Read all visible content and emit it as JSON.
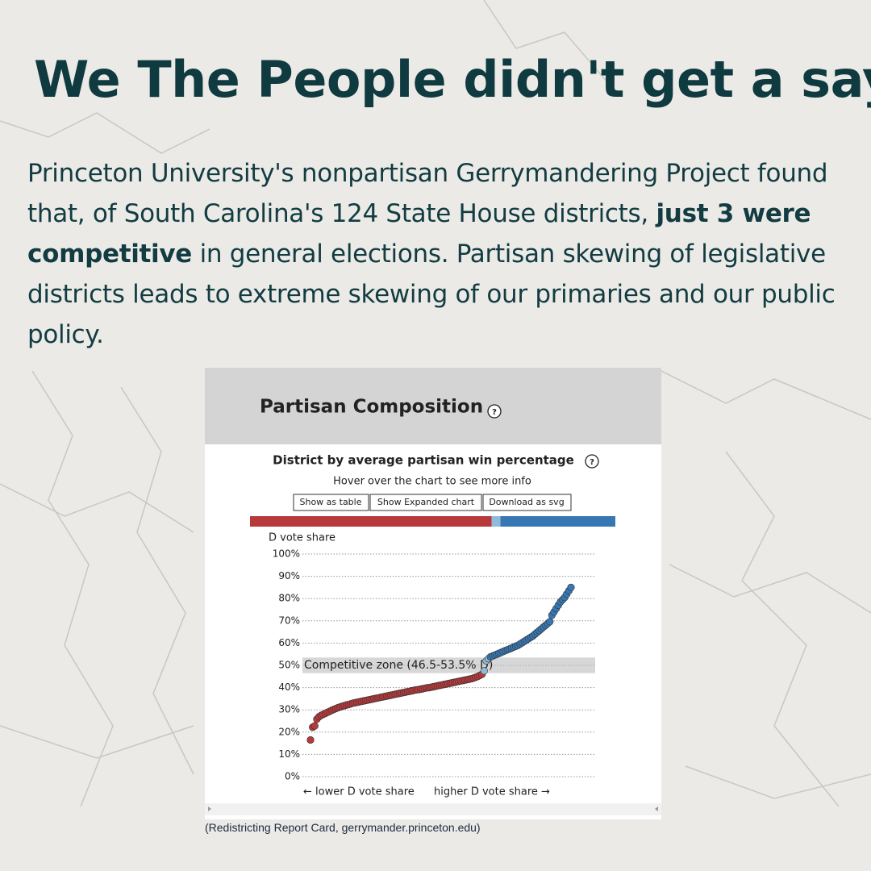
{
  "headline": "We The People didn't get a say.",
  "paragraph": [
    "Princeton University's nonpartisan Gerrymandering Project found that, of South Carolina's 124 State House districts, ",
    "just 3 were competitive",
    " in general elections. Partisan skewing of legislative districts leads to extreme skewing of our primaries and our public policy."
  ],
  "panel_title": "Partisan Composition",
  "help_icon": "?",
  "buttons": [
    "Show as table",
    "Show Expanded chart",
    "Download as svg"
  ],
  "caption": "(Redistricting Report Card, gerrymander.princeton.edu)",
  "chart_data": {
    "type": "scatter",
    "title": "District by average partisan win percentage",
    "subtitle": "Hover over the chart to see more info",
    "y_label": "D vote share",
    "x_label_left": "← lower D vote share",
    "x_label_right": "higher D vote share →",
    "zone": {
      "label": "Competitive zone (46.5-53.5% D)",
      "range": [
        46.5,
        53.5
      ]
    },
    "colors": {
      "below": "#b8393b",
      "zone": "#8fbbd9",
      "above": "#3777b3"
    },
    "ylim": [
      0,
      100
    ],
    "yticks": [
      {
        "value": 0,
        "label": "0%"
      },
      {
        "value": 10,
        "label": "10%"
      },
      {
        "value": 20,
        "label": "20%"
      },
      {
        "value": 30,
        "label": "30%"
      },
      {
        "value": 40,
        "label": "40%"
      },
      {
        "value": 50,
        "label": "50%"
      },
      {
        "value": 60,
        "label": "60%"
      },
      {
        "value": 70,
        "label": "70%"
      },
      {
        "value": 80,
        "label": "80%"
      },
      {
        "value": 90,
        "label": "90%"
      },
      {
        "value": 100,
        "label": "100%"
      }
    ],
    "grid": true,
    "values": [
      16.5,
      22.2,
      22.8,
      25.8,
      26.9,
      27.5,
      28.0,
      28.4,
      28.9,
      29.3,
      29.8,
      30.2,
      30.6,
      31.0,
      31.3,
      31.6,
      31.9,
      32.2,
      32.4,
      32.7,
      33.0,
      33.2,
      33.4,
      33.6,
      33.8,
      34.0,
      34.2,
      34.4,
      34.6,
      34.8,
      35.0,
      35.2,
      35.4,
      35.6,
      35.8,
      36.0,
      36.2,
      36.4,
      36.6,
      36.8,
      37.0,
      37.2,
      37.4,
      37.6,
      37.8,
      38.0,
      38.2,
      38.4,
      38.6,
      38.8,
      39.0,
      39.1,
      39.3,
      39.5,
      39.7,
      39.9,
      40.0,
      40.2,
      40.4,
      40.6,
      40.8,
      41.0,
      41.2,
      41.4,
      41.6,
      41.8,
      42.0,
      42.2,
      42.4,
      42.6,
      42.8,
      43.0,
      43.2,
      43.4,
      43.6,
      43.8,
      44.0,
      44.3,
      44.6,
      45.0,
      45.5,
      46.0,
      47.5,
      52.0,
      53.0,
      53.8,
      54.2,
      54.6,
      55.0,
      55.4,
      55.8,
      56.2,
      56.6,
      57.0,
      57.4,
      57.8,
      58.2,
      58.6,
      59.0,
      59.6,
      60.2,
      60.8,
      61.4,
      62.0,
      62.6,
      63.2,
      64.0,
      64.8,
      65.6,
      66.4,
      67.2,
      68.0,
      68.8,
      69.6,
      72.5,
      74.0,
      75.5,
      77.0,
      78.5,
      79.5,
      80.5,
      82.0,
      83.5,
      85.0
    ]
  }
}
